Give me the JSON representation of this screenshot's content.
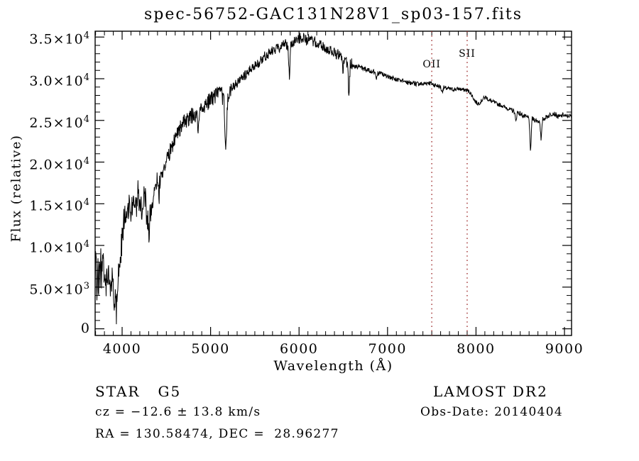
{
  "title": "spec-56752-GAC131N28V1_sp03-157.fits",
  "footer": {
    "class_label": "STAR   G5",
    "survey": "LAMOST DR2",
    "cz": "cz = −12.6 ± 13.8 km/s",
    "obs_date": "Obs-Date: 20140404",
    "coords": "RA = 130.58474, DEC =  28.96277"
  },
  "chart_data": {
    "type": "line",
    "title": "spec-56752-GAC131N28V1_sp03-157.fits",
    "xlabel": "Wavelength (Å)",
    "ylabel": "Flux (relative)",
    "xlim": [
      3695,
      9080
    ],
    "ylim": [
      -800,
      35700
    ],
    "grid": "off",
    "line_color": "#000000",
    "background": "#ffffff",
    "x_major_ticks": [
      4000,
      5000,
      6000,
      7000,
      8000,
      9000
    ],
    "x_minor_step": 100,
    "y_major_ticks": [
      {
        "value": 0,
        "label": "0"
      },
      {
        "value": 5000,
        "label": "5.0×10^3"
      },
      {
        "value": 10000,
        "label": "1.0×10^4"
      },
      {
        "value": 15000,
        "label": "1.5×10^4"
      },
      {
        "value": 20000,
        "label": "2.0×10^4"
      },
      {
        "value": 25000,
        "label": "2.5×10^4"
      },
      {
        "value": 30000,
        "label": "3.0×10^4"
      },
      {
        "value": 35000,
        "label": "3.5×10^4"
      }
    ],
    "y_minor_step": 1000,
    "marker_line_color": "#9b2626",
    "marker_lines": [
      {
        "label": "OII",
        "wavelength": 7500,
        "label_center_y": 92
      },
      {
        "label": "SII",
        "wavelength": 7900,
        "label_center_y": 77
      }
    ],
    "envelope_points": [
      [
        3695,
        7000
      ],
      [
        3703,
        9800
      ],
      [
        3710,
        5200
      ],
      [
        3718,
        3000
      ],
      [
        3726,
        8200
      ],
      [
        3734,
        2600
      ],
      [
        3742,
        9200
      ],
      [
        3750,
        6200
      ],
      [
        3758,
        8800
      ],
      [
        3766,
        5400
      ],
      [
        3775,
        7600
      ],
      [
        3785,
        8600
      ],
      [
        3795,
        5200
      ],
      [
        3805,
        6800
      ],
      [
        3815,
        4600
      ],
      [
        3825,
        6600
      ],
      [
        3835,
        5400
      ],
      [
        3848,
        7200
      ],
      [
        3860,
        5800
      ],
      [
        3872,
        4400
      ],
      [
        3885,
        6200
      ],
      [
        3898,
        5200
      ],
      [
        3912,
        3600
      ],
      [
        3925,
        4600
      ],
      [
        3935,
        2100
      ],
      [
        3947,
        5200
      ],
      [
        3960,
        6800
      ],
      [
        3975,
        8200
      ],
      [
        3990,
        9600
      ],
      [
        4005,
        11200
      ],
      [
        4020,
        12800
      ],
      [
        4040,
        14600
      ],
      [
        4060,
        13200
      ],
      [
        4080,
        15400
      ],
      [
        4100,
        13800
      ],
      [
        4120,
        15200
      ],
      [
        4140,
        16200
      ],
      [
        4160,
        14200
      ],
      [
        4180,
        16400
      ],
      [
        4200,
        15200
      ],
      [
        4216,
        15800
      ],
      [
        4226,
        12900
      ],
      [
        4240,
        15600
      ],
      [
        4260,
        16200
      ],
      [
        4278,
        12600
      ],
      [
        4292,
        14200
      ],
      [
        4305,
        9800
      ],
      [
        4318,
        14800
      ],
      [
        4335,
        13600
      ],
      [
        4352,
        16600
      ],
      [
        4370,
        15800
      ],
      [
        4395,
        17400
      ],
      [
        4420,
        16600
      ],
      [
        4450,
        18800
      ],
      [
        4480,
        19600
      ],
      [
        4510,
        20400
      ],
      [
        4540,
        21200
      ],
      [
        4570,
        22000
      ],
      [
        4600,
        23200
      ],
      [
        4630,
        23600
      ],
      [
        4660,
        24200
      ],
      [
        4690,
        24600
      ],
      [
        4720,
        24900
      ],
      [
        4750,
        25100
      ],
      [
        4780,
        25400
      ],
      [
        4810,
        25800
      ],
      [
        4845,
        25400
      ],
      [
        4861,
        24300
      ],
      [
        4880,
        26100
      ],
      [
        4910,
        26600
      ],
      [
        4940,
        26900
      ],
      [
        4970,
        27200
      ],
      [
        5000,
        27500
      ],
      [
        5030,
        27800
      ],
      [
        5060,
        28000
      ],
      [
        5090,
        28200
      ],
      [
        5120,
        28100
      ],
      [
        5150,
        27600
      ],
      [
        5172,
        21600
      ],
      [
        5195,
        27700
      ],
      [
        5220,
        28400
      ],
      [
        5250,
        28900
      ],
      [
        5280,
        29300
      ],
      [
        5310,
        29600
      ],
      [
        5340,
        29900
      ],
      [
        5370,
        30200
      ],
      [
        5400,
        30500
      ],
      [
        5430,
        30800
      ],
      [
        5460,
        31100
      ],
      [
        5490,
        31400
      ],
      [
        5520,
        31700
      ],
      [
        5550,
        32000
      ],
      [
        5580,
        32300
      ],
      [
        5610,
        32600
      ],
      [
        5640,
        32900
      ],
      [
        5670,
        33100
      ],
      [
        5700,
        33300
      ],
      [
        5730,
        33500
      ],
      [
        5760,
        33700
      ],
      [
        5790,
        33900
      ],
      [
        5820,
        34100
      ],
      [
        5850,
        34200
      ],
      [
        5875,
        33900
      ],
      [
        5890,
        29900
      ],
      [
        5906,
        34100
      ],
      [
        5930,
        34400
      ],
      [
        5960,
        34600
      ],
      [
        5990,
        34800
      ],
      [
        6020,
        34900
      ],
      [
        6050,
        35000
      ],
      [
        6080,
        34600
      ],
      [
        6110,
        34900
      ],
      [
        6140,
        34500
      ],
      [
        6170,
        34400
      ],
      [
        6200,
        34200
      ],
      [
        6230,
        34000
      ],
      [
        6260,
        33900
      ],
      [
        6290,
        33700
      ],
      [
        6320,
        33500
      ],
      [
        6350,
        33400
      ],
      [
        6380,
        33200
      ],
      [
        6410,
        33100
      ],
      [
        6440,
        32900
      ],
      [
        6470,
        32700
      ],
      [
        6482,
        32300
      ],
      [
        6495,
        30700
      ],
      [
        6508,
        32200
      ],
      [
        6530,
        32000
      ],
      [
        6548,
        31900
      ],
      [
        6563,
        27900
      ],
      [
        6580,
        31900
      ],
      [
        6610,
        31700
      ],
      [
        6640,
        31500
      ],
      [
        6670,
        31400
      ],
      [
        6700,
        31300
      ],
      [
        6730,
        31200
      ],
      [
        6760,
        31100
      ],
      [
        6790,
        31000
      ],
      [
        6820,
        30900
      ],
      [
        6850,
        30800
      ],
      [
        6878,
        30100
      ],
      [
        6892,
        30700
      ],
      [
        6920,
        30600
      ],
      [
        6950,
        30500
      ],
      [
        6980,
        30300
      ],
      [
        7010,
        30200
      ],
      [
        7040,
        30100
      ],
      [
        7070,
        30000
      ],
      [
        7100,
        29900
      ],
      [
        7130,
        29800
      ],
      [
        7160,
        29700
      ],
      [
        7190,
        29700
      ],
      [
        7220,
        29600
      ],
      [
        7250,
        29500
      ],
      [
        7280,
        29500
      ],
      [
        7310,
        29400
      ],
      [
        7340,
        29400
      ],
      [
        7370,
        29400
      ],
      [
        7400,
        29350
      ],
      [
        7430,
        29450
      ],
      [
        7460,
        29550
      ],
      [
        7490,
        29450
      ],
      [
        7520,
        29300
      ],
      [
        7550,
        29200
      ],
      [
        7580,
        29100
      ],
      [
        7600,
        29000
      ],
      [
        7615,
        28400
      ],
      [
        7632,
        28900
      ],
      [
        7660,
        28850
      ],
      [
        7690,
        28800
      ],
      [
        7720,
        28750
      ],
      [
        7750,
        28700
      ],
      [
        7780,
        28750
      ],
      [
        7810,
        28800
      ],
      [
        7840,
        28700
      ],
      [
        7870,
        28650
      ],
      [
        7900,
        28600
      ],
      [
        7930,
        28400
      ],
      [
        7960,
        27900
      ],
      [
        7990,
        27300
      ],
      [
        8020,
        27000
      ],
      [
        8050,
        27200
      ],
      [
        8080,
        27600
      ],
      [
        8110,
        27800
      ],
      [
        8140,
        27500
      ],
      [
        8170,
        27300
      ],
      [
        8200,
        27200
      ],
      [
        8230,
        27000
      ],
      [
        8260,
        26900
      ],
      [
        8290,
        26800
      ],
      [
        8320,
        26600
      ],
      [
        8350,
        26500
      ],
      [
        8380,
        26300
      ],
      [
        8410,
        26200
      ],
      [
        8435,
        26100
      ],
      [
        8450,
        24700
      ],
      [
        8465,
        26000
      ],
      [
        8500,
        25800
      ],
      [
        8530,
        25600
      ],
      [
        8560,
        25400
      ],
      [
        8600,
        25300
      ],
      [
        8616,
        20800
      ],
      [
        8632,
        25200
      ],
      [
        8660,
        25100
      ],
      [
        8700,
        24900
      ],
      [
        8722,
        24900
      ],
      [
        8736,
        22400
      ],
      [
        8752,
        25100
      ],
      [
        8780,
        25300
      ],
      [
        8810,
        25500
      ],
      [
        8840,
        25700
      ],
      [
        8870,
        25900
      ],
      [
        8900,
        25700
      ],
      [
        8930,
        25400
      ],
      [
        8960,
        25500
      ],
      [
        8990,
        25700
      ],
      [
        9020,
        25400
      ],
      [
        9050,
        25600
      ],
      [
        9080,
        25400
      ]
    ],
    "noise_regions": [
      {
        "until": 4450,
        "amp": 1700
      },
      {
        "until": 5250,
        "amp": 1000
      },
      {
        "until": 6600,
        "amp": 650
      },
      {
        "until": 7650,
        "amp": 300
      },
      {
        "until": 8400,
        "amp": 250
      },
      {
        "until": 9100,
        "amp": 300
      }
    ],
    "noise_seed": 20140404
  }
}
